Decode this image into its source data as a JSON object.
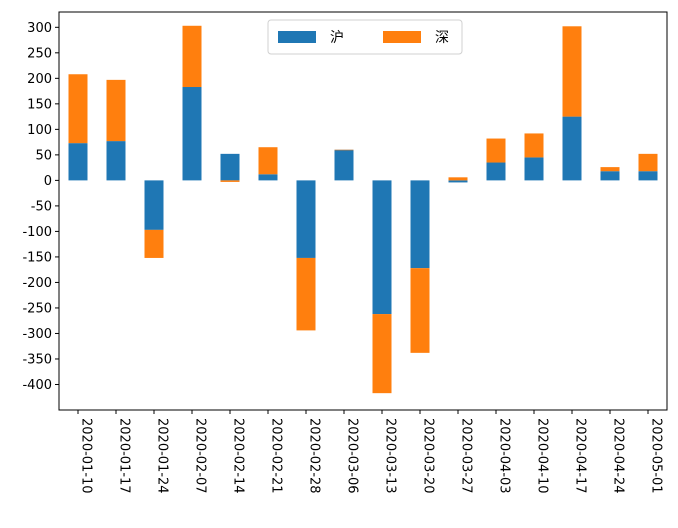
{
  "chart_data": {
    "type": "bar",
    "stacked": true,
    "title": "",
    "xlabel": "",
    "ylabel": "",
    "categories": [
      "2020-01-10",
      "2020-01-17",
      "2020-01-24",
      "2020-02-07",
      "2020-02-14",
      "2020-02-21",
      "2020-02-28",
      "2020-03-06",
      "2020-03-13",
      "2020-03-20",
      "2020-03-27",
      "2020-04-03",
      "2020-04-10",
      "2020-04-17",
      "2020-04-24",
      "2020-05-01"
    ],
    "series": [
      {
        "name": "沪",
        "color": "#1f77b4",
        "values": [
          73,
          77,
          -97,
          183,
          52,
          12,
          -152,
          60,
          -262,
          -172,
          -4,
          35,
          45,
          125,
          18,
          18
        ]
      },
      {
        "name": "深",
        "color": "#ff7f0e",
        "values": [
          135,
          120,
          -55,
          120,
          -3,
          53,
          -142,
          0,
          -155,
          -166,
          6,
          47,
          47,
          177,
          8,
          34
        ]
      }
    ],
    "ylim": [
      -450,
      330
    ],
    "yticks": [
      300,
      250,
      200,
      150,
      100,
      50,
      0,
      -50,
      -100,
      -150,
      -200,
      -250,
      -300,
      -350,
      -400
    ],
    "legend": "top-center",
    "grid": false
  }
}
